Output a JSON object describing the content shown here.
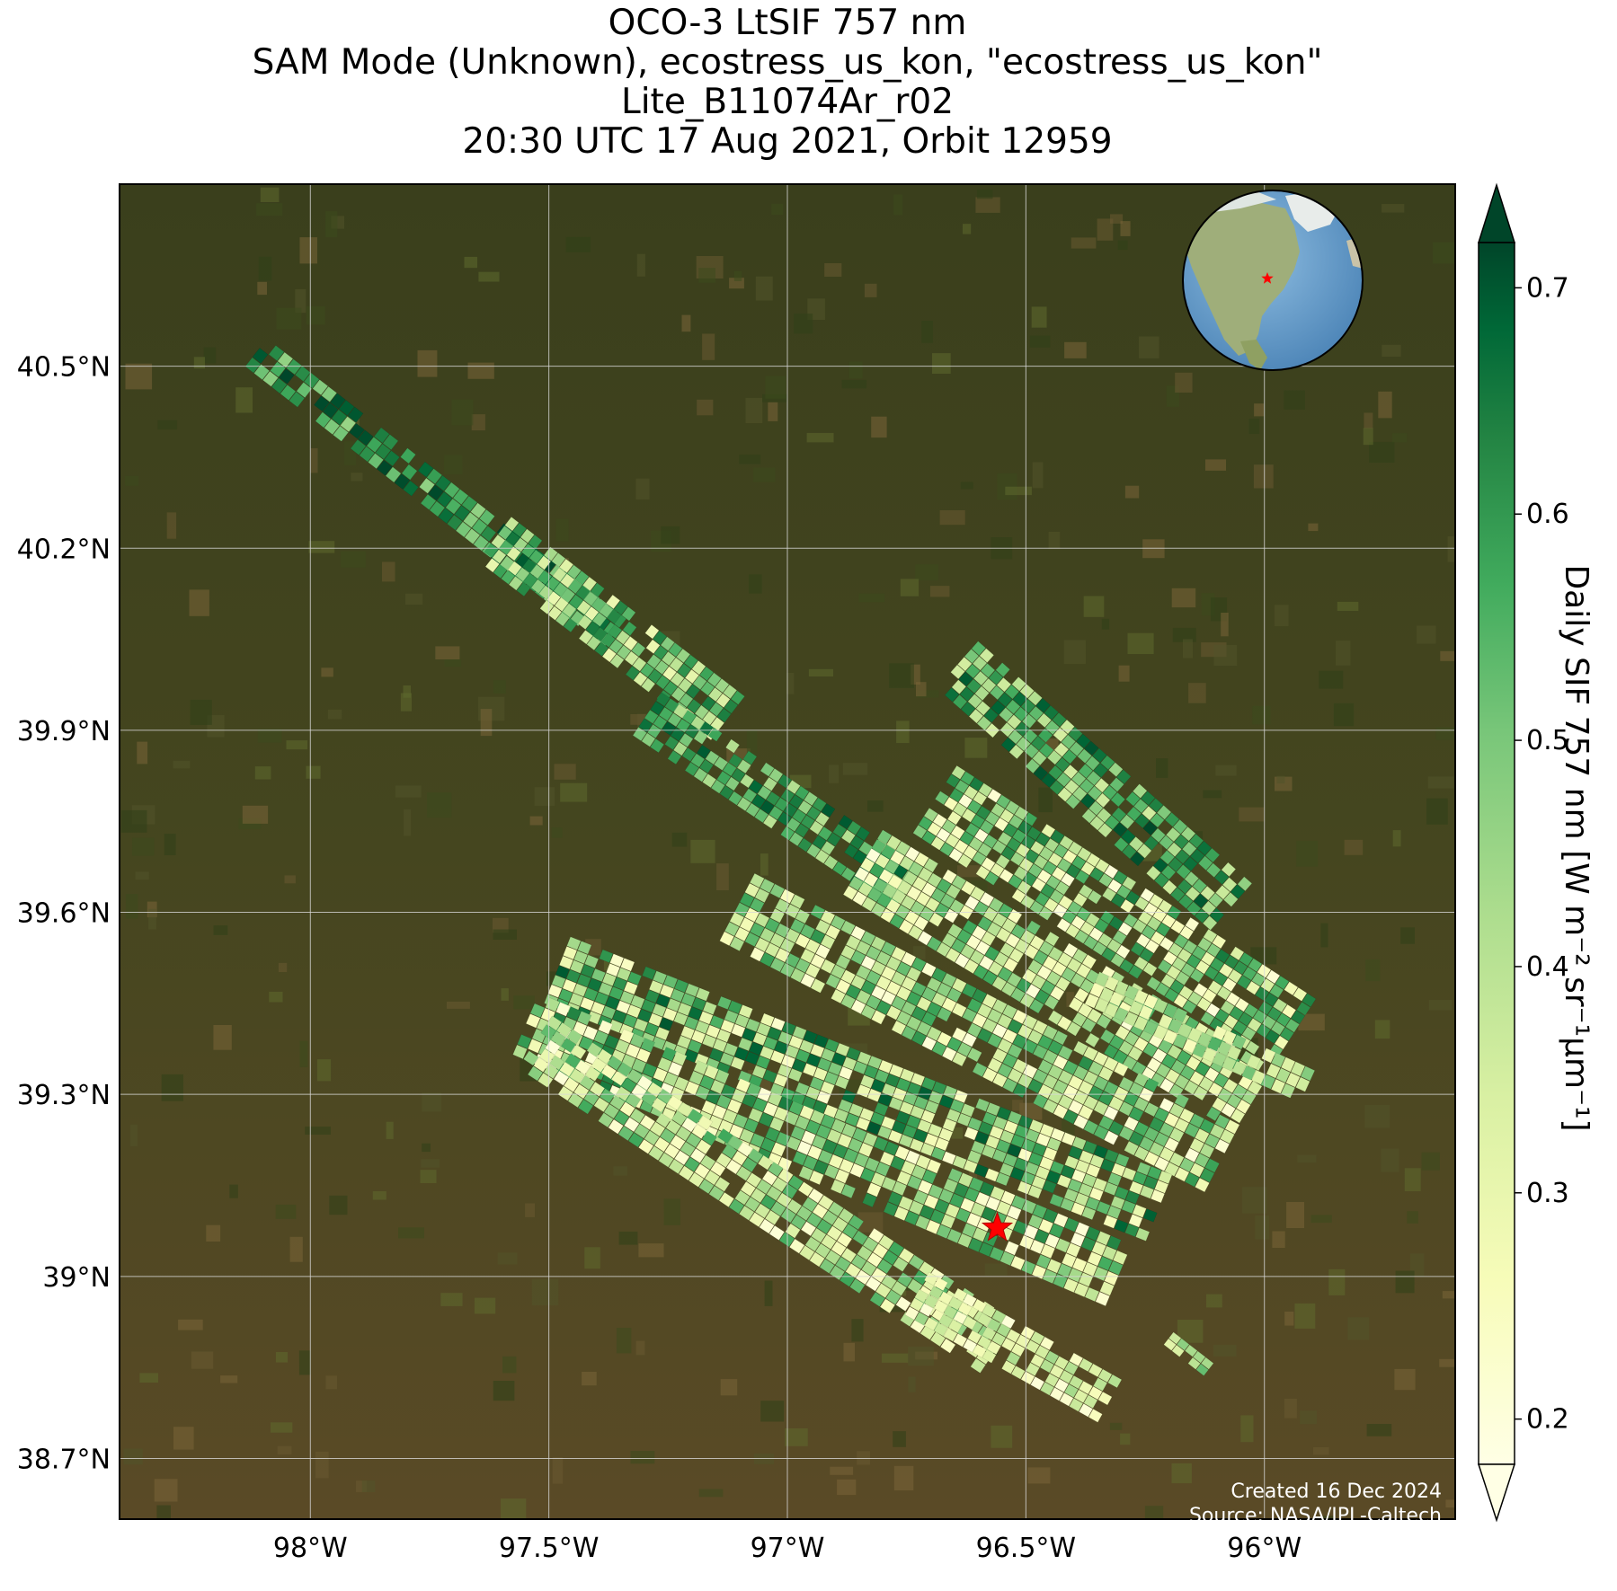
{
  "title": {
    "line1": "OCO-3 LtSIF 757 nm",
    "line2": "SAM Mode (Unknown), ecostress_us_kon, \"ecostress_us_kon\"",
    "line3": "Lite_B11074Ar_r02",
    "line4": "20:30 UTC 17 Aug 2021, Orbit 12959"
  },
  "map": {
    "lon_range": [
      -98.4,
      -95.6
    ],
    "lat_range": [
      38.6,
      40.8
    ],
    "lon_ticks": [
      -98,
      -97.5,
      -97,
      -96.5,
      -96
    ],
    "lon_tick_labels": [
      "98°W",
      "97.5°W",
      "97°W",
      "96.5°W",
      "96°W"
    ],
    "lat_ticks": [
      40.5,
      40.2,
      39.9,
      39.6,
      39.3,
      39.0,
      38.7
    ],
    "lat_tick_labels": [
      "40.5°N",
      "40.2°N",
      "39.9°N",
      "39.6°N",
      "39.3°N",
      "39°N",
      "38.7°N"
    ],
    "grid": true,
    "target_site": {
      "lon": -96.56,
      "lat": 39.08,
      "marker": "red-star"
    },
    "inset": {
      "type": "globe",
      "placement": "top-right",
      "marker": "red-star"
    },
    "credit_line1": "Created 16 Dec 2024",
    "credit_line2": "Source: NASA/JPL-Caltech"
  },
  "colorbar": {
    "label": "Daily SIF 757 nm [W m⁻² sr⁻¹μm⁻¹]",
    "ticks": [
      0.2,
      0.3,
      0.4,
      0.5,
      0.6,
      0.7
    ],
    "tick_labels": [
      "0.2",
      "0.3",
      "0.4",
      "0.5",
      "0.6",
      "0.7"
    ],
    "range": [
      0.18,
      0.72
    ],
    "extend": "both",
    "colormap": "YlGn"
  },
  "colors": {
    "background_field": "#4a4a1c",
    "grid": "#d8d8d8",
    "target": "#ff0000"
  }
}
